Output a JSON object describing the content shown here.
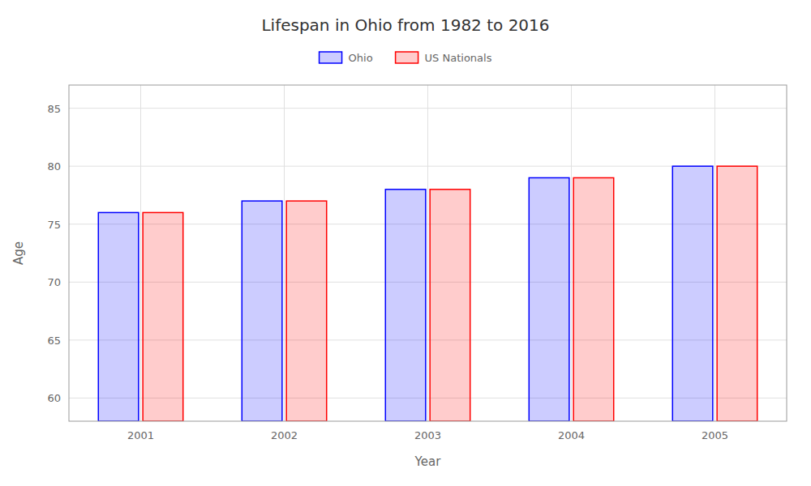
{
  "chart_data": {
    "type": "bar",
    "title": "Lifespan in Ohio from 1982 to 2016",
    "x_label": "Year",
    "y_label": "Age",
    "categories": [
      "2001",
      "2002",
      "2003",
      "2004",
      "2005"
    ],
    "series": [
      {
        "name": "Ohio",
        "color": "#0000ff",
        "values": [
          76,
          77,
          78,
          79,
          80
        ]
      },
      {
        "name": "US Nationals",
        "color": "#ff0000",
        "values": [
          76,
          77,
          78,
          79,
          80
        ]
      }
    ],
    "ylim": [
      58,
      87
    ],
    "yticks": [
      60,
      65,
      70,
      75,
      80,
      85
    ],
    "grid": true,
    "legend": "top"
  }
}
